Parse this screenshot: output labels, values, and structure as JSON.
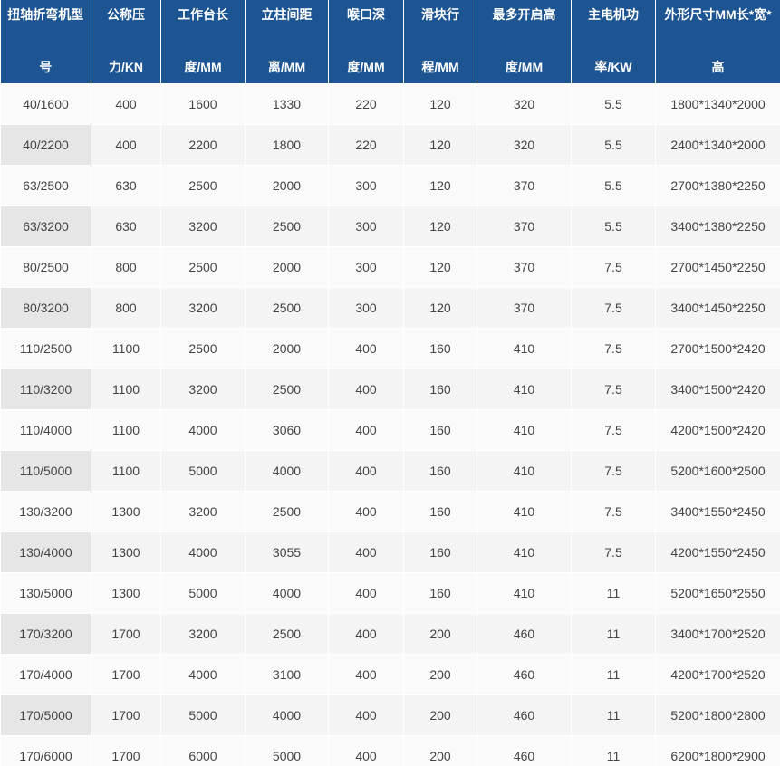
{
  "table": {
    "header": [
      [
        "扭轴折弯机型",
        "号"
      ],
      [
        "公称压",
        "力/KN"
      ],
      [
        "工作台长",
        "度/MM"
      ],
      [
        "立柱间距",
        "离/MM"
      ],
      [
        "喉口深",
        "度/MM"
      ],
      [
        "滑块行",
        "程/MM"
      ],
      [
        "最多开启高",
        "度/MM"
      ],
      [
        "主电机功",
        "率/KW"
      ],
      [
        "外形尺寸MM长*宽*",
        "高"
      ]
    ],
    "rows": [
      [
        "40/1600",
        "400",
        "1600",
        "1330",
        "220",
        "120",
        "320",
        "5.5",
        "1800*1340*2000"
      ],
      [
        "40/2200",
        "400",
        "2200",
        "1800",
        "220",
        "120",
        "320",
        "5.5",
        "2400*1340*2000"
      ],
      [
        "63/2500",
        "630",
        "2500",
        "2000",
        "300",
        "120",
        "370",
        "5.5",
        "2700*1380*2250"
      ],
      [
        "63/3200",
        "630",
        "3200",
        "2500",
        "300",
        "120",
        "370",
        "5.5",
        "3400*1380*2250"
      ],
      [
        "80/2500",
        "800",
        "2500",
        "2000",
        "300",
        "120",
        "370",
        "7.5",
        "2700*1450*2250"
      ],
      [
        "80/3200",
        "800",
        "3200",
        "2500",
        "300",
        "120",
        "370",
        "7.5",
        "3400*1450*2250"
      ],
      [
        "110/2500",
        "1100",
        "2500",
        "2000",
        "400",
        "160",
        "410",
        "7.5",
        "2700*1500*2420"
      ],
      [
        "110/3200",
        "1100",
        "3200",
        "2500",
        "400",
        "160",
        "410",
        "7.5",
        "3400*1500*2420"
      ],
      [
        "110/4000",
        "1100",
        "4000",
        "3060",
        "400",
        "160",
        "410",
        "7.5",
        "4200*1500*2420"
      ],
      [
        "110/5000",
        "1100",
        "5000",
        "4000",
        "400",
        "160",
        "410",
        "7.5",
        "5200*1600*2500"
      ],
      [
        "130/3200",
        "1300",
        "3200",
        "2500",
        "400",
        "160",
        "410",
        "7.5",
        "3400*1550*2450"
      ],
      [
        "130/4000",
        "1300",
        "4000",
        "3055",
        "400",
        "160",
        "410",
        "7.5",
        "4200*1550*2450"
      ],
      [
        "130/5000",
        "1300",
        "5000",
        "4000",
        "400",
        "160",
        "410",
        "11",
        "5200*1650*2550"
      ],
      [
        "170/3200",
        "1700",
        "3200",
        "2500",
        "400",
        "200",
        "460",
        "11",
        "3400*1700*2520"
      ],
      [
        "170/4000",
        "1700",
        "4000",
        "3100",
        "400",
        "200",
        "460",
        "11",
        "4200*1700*2520"
      ],
      [
        "170/5000",
        "1700",
        "5000",
        "4000",
        "400",
        "200",
        "460",
        "11",
        "5200*1800*2800"
      ],
      [
        "170/6000",
        "1700",
        "6000",
        "5000",
        "400",
        "200",
        "460",
        "11",
        "6200*1800*2900"
      ]
    ]
  }
}
